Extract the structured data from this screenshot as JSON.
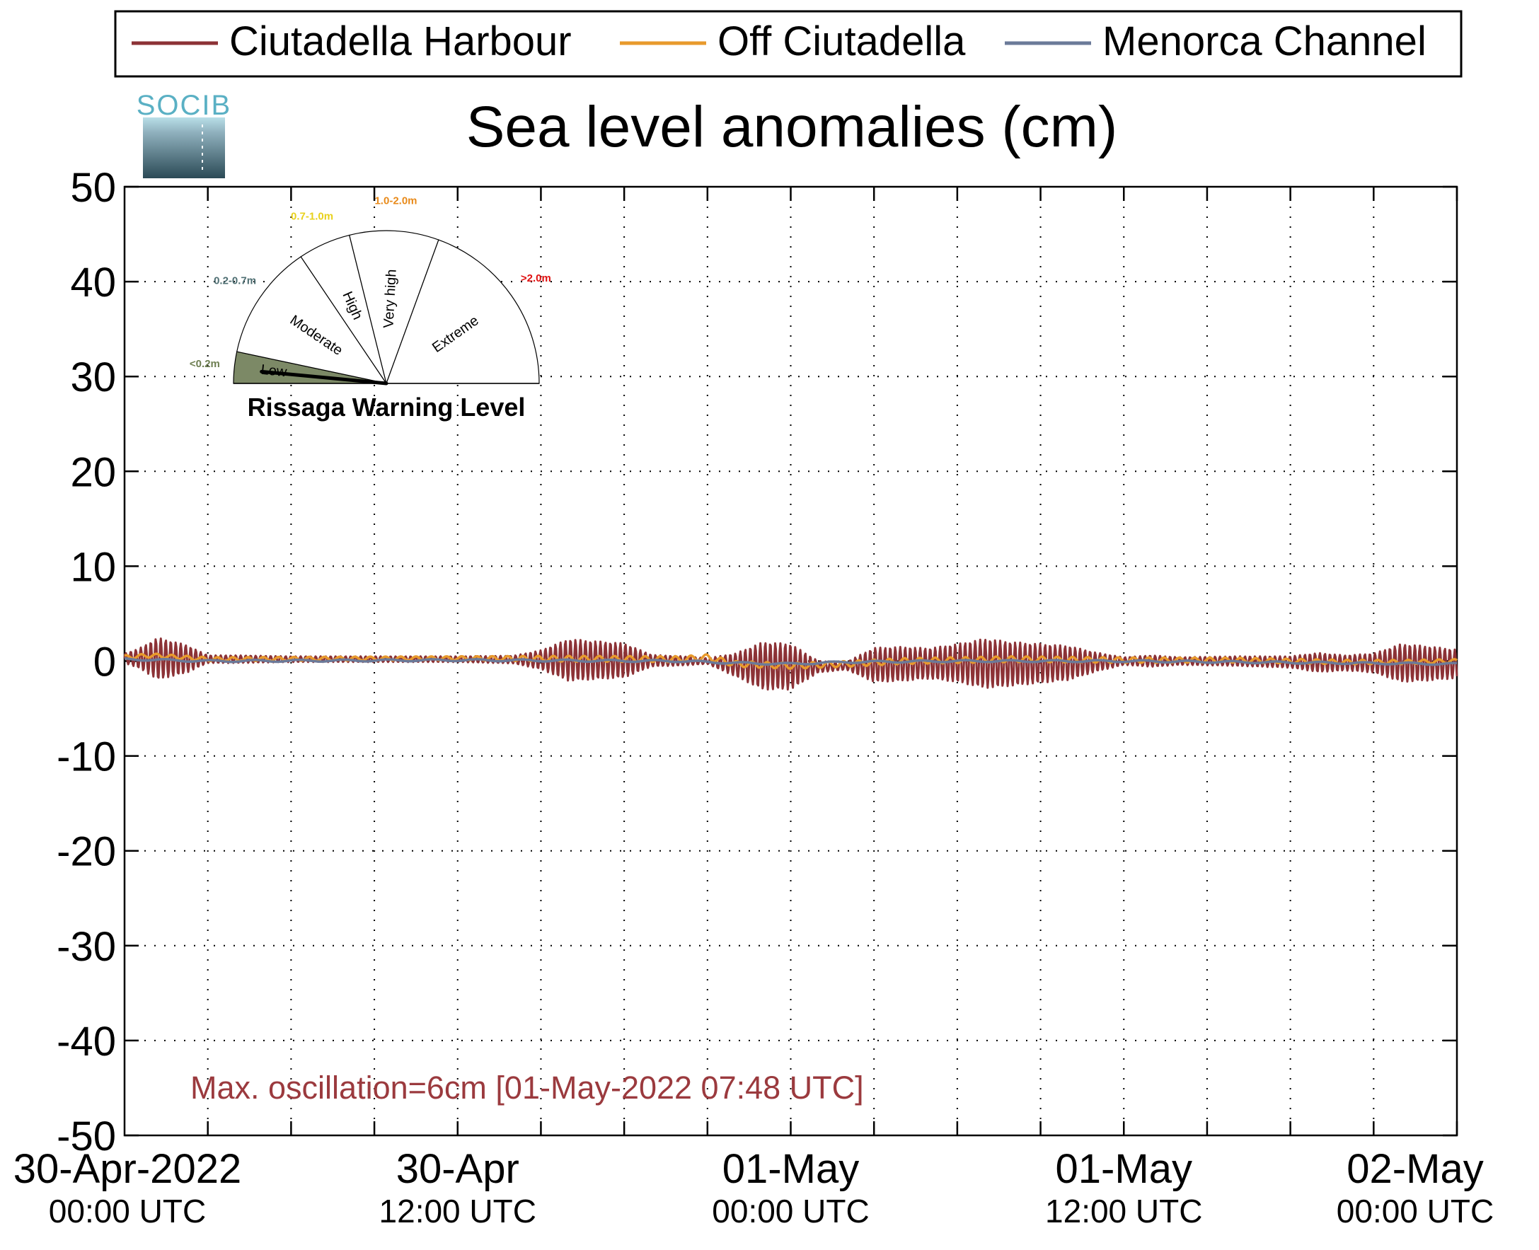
{
  "colors": {
    "ciutadella_harbour": "#8c3236",
    "off_ciutadella": "#e89a2c",
    "menorca_channel": "#6b7a99",
    "gauge_low_fill": "#7c8966",
    "label_low": "#6e7f52",
    "label_moderate": "#4f6f73",
    "label_high": "#e8d11c",
    "label_very_high": "#e88a1a",
    "label_extreme": "#e01010",
    "annotation": "#9b3a3e",
    "logo_text": "#5ab0c4"
  },
  "logo": {
    "text": "SOCIB",
    "icon": "socib-logo-icon"
  },
  "gauge": {
    "title": "Rissaga Warning Level",
    "current_level": "Low",
    "current_fraction": 0.03,
    "sectors": [
      {
        "name": "Low",
        "range": "<0.2m"
      },
      {
        "name": "Moderate",
        "range": "0.2-0.7m"
      },
      {
        "name": "High",
        "range": "0.7-1.0m"
      },
      {
        "name": "Very high",
        "range": "1.0-2.0m"
      },
      {
        "name": "Extreme",
        "range": ">2.0m"
      }
    ]
  },
  "chart_data": {
    "type": "line",
    "title": "Sea level anomalies (cm)",
    "xlabel": "",
    "ylabel": "",
    "ylim": [
      -50,
      50
    ],
    "yticks": [
      50,
      40,
      30,
      20,
      10,
      0,
      -10,
      -20,
      -30,
      -40,
      -50
    ],
    "xlim_hours": [
      0,
      48
    ],
    "x_minor_tick_hours": [
      3,
      6,
      9,
      12,
      15,
      18,
      21,
      24,
      27,
      30,
      33,
      36,
      39,
      42,
      45,
      48
    ],
    "x_tick_labels": [
      {
        "hour": 0,
        "date": "30-Apr-2022",
        "time": "00:00 UTC"
      },
      {
        "hour": 12,
        "date": "30-Apr",
        "time": "12:00 UTC"
      },
      {
        "hour": 24,
        "date": "01-May",
        "time": "00:00 UTC"
      },
      {
        "hour": 36,
        "date": "01-May",
        "time": "12:00 UTC"
      },
      {
        "hour": 48,
        "date": "02-May",
        "time": "00:00 UTC"
      }
    ],
    "grid": true,
    "legend_position": "top",
    "annotation": "Max. oscillation=6cm [01-May-2022 07:48 UTC]",
    "series": [
      {
        "name": "Ciutadella Harbour",
        "envelope": [
          [
            0,
            0.5
          ],
          [
            0.5,
            1.0
          ],
          [
            1.2,
            2.2
          ],
          [
            2.2,
            1.5
          ],
          [
            3,
            0.4
          ],
          [
            4,
            0.4
          ],
          [
            6,
            0.3
          ],
          [
            8,
            0.3
          ],
          [
            10,
            0.3
          ],
          [
            12,
            0.3
          ],
          [
            14,
            0.4
          ],
          [
            15,
            1.0
          ],
          [
            16,
            2.2
          ],
          [
            18,
            1.8
          ],
          [
            19,
            0.6
          ],
          [
            20,
            0.5
          ],
          [
            21,
            0.3
          ],
          [
            22,
            1.2
          ],
          [
            23,
            2.5
          ],
          [
            24,
            2.4
          ],
          [
            25,
            0.6
          ],
          [
            26,
            0.4
          ],
          [
            27,
            1.8
          ],
          [
            28,
            1.8
          ],
          [
            29,
            1.6
          ],
          [
            30,
            2.0
          ],
          [
            31,
            2.6
          ],
          [
            32,
            2.3
          ],
          [
            34,
            1.8
          ],
          [
            35,
            1.0
          ],
          [
            36,
            0.4
          ],
          [
            37,
            0.6
          ],
          [
            38,
            0.4
          ],
          [
            40,
            0.5
          ],
          [
            42,
            0.6
          ],
          [
            43,
            1.0
          ],
          [
            44,
            0.8
          ],
          [
            45,
            1.0
          ],
          [
            46,
            2.0
          ],
          [
            47,
            1.8
          ],
          [
            48,
            1.5
          ]
        ],
        "offset": [
          [
            0,
            0.3
          ],
          [
            3,
            0.2
          ],
          [
            12,
            0.2
          ],
          [
            21,
            0.0
          ],
          [
            22,
            -0.4
          ],
          [
            24,
            -0.6
          ],
          [
            25,
            -0.6
          ],
          [
            26,
            -0.5
          ],
          [
            28,
            -0.3
          ],
          [
            30,
            -0.2
          ],
          [
            32,
            -0.3
          ],
          [
            34,
            -0.2
          ],
          [
            36,
            0.0
          ],
          [
            40,
            0.0
          ],
          [
            44,
            -0.2
          ],
          [
            46,
            -0.2
          ],
          [
            48,
            -0.3
          ]
        ]
      },
      {
        "name": "Off Ciutadella",
        "offset": [
          [
            0,
            0.4
          ],
          [
            1,
            0.6
          ],
          [
            3,
            0.2
          ],
          [
            12,
            0.3
          ],
          [
            20,
            0.2
          ],
          [
            21,
            0.4
          ],
          [
            22,
            -0.3
          ],
          [
            24,
            -0.5
          ],
          [
            25,
            -0.4
          ],
          [
            26,
            -0.3
          ],
          [
            28,
            0.0
          ],
          [
            30,
            0.1
          ],
          [
            32,
            0.2
          ],
          [
            36,
            0.1
          ],
          [
            40,
            0.1
          ],
          [
            44,
            -0.1
          ],
          [
            46,
            -0.1
          ],
          [
            48,
            0.0
          ]
        ],
        "envelope": [
          [
            0,
            0.2
          ],
          [
            12,
            0.2
          ],
          [
            16,
            0.3
          ],
          [
            24,
            0.3
          ],
          [
            32,
            0.3
          ],
          [
            48,
            0.2
          ]
        ]
      },
      {
        "name": "Menorca Channel",
        "offset": [
          [
            0,
            0.2
          ],
          [
            3,
            0.0
          ],
          [
            12,
            0.1
          ],
          [
            20,
            0.0
          ],
          [
            22,
            -0.2
          ],
          [
            24,
            -0.3
          ],
          [
            26,
            -0.1
          ],
          [
            30,
            0.0
          ],
          [
            36,
            0.0
          ],
          [
            44,
            -0.2
          ],
          [
            48,
            -0.3
          ]
        ],
        "envelope": [
          [
            0,
            0.1
          ],
          [
            48,
            0.1
          ]
        ]
      }
    ]
  }
}
